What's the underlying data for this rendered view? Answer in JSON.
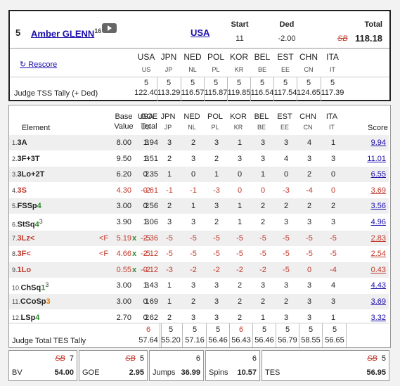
{
  "skater": {
    "rank": "5",
    "name": "Amber GLENN",
    "name_sup": "16",
    "country": "USA",
    "start_label": "Start",
    "start_value": "11",
    "ded_label": "Ded",
    "ded_value": "-2.00",
    "total_label": "Total",
    "total_value": "118.18",
    "total_strike": "SB"
  },
  "rescore_label": "↻ Rescore",
  "judges": [
    {
      "code": "USA",
      "sub": "US",
      "tss": "122.40"
    },
    {
      "code": "JPN",
      "sub": "JP",
      "tss": "113.29"
    },
    {
      "code": "NED",
      "sub": "NL",
      "tss": "116.57"
    },
    {
      "code": "POL",
      "sub": "PL",
      "tss": "115.87"
    },
    {
      "code": "KOR",
      "sub": "KR",
      "tss": "119.85"
    },
    {
      "code": "BEL",
      "sub": "BE",
      "tss": "116.54"
    },
    {
      "code": "EST",
      "sub": "EE",
      "tss": "117.54"
    },
    {
      "code": "CHN",
      "sub": "CN",
      "tss": "124.65"
    },
    {
      "code": "ITA",
      "sub": "IT",
      "tss": "117.39"
    }
  ],
  "tss_rank": [
    "5",
    "5",
    "5",
    "5",
    "5",
    "5",
    "5",
    "5",
    "5"
  ],
  "tss_label": "Judge TSS Tally (+ Ded)",
  "elements_header": {
    "element": "Element",
    "base": "Base",
    "value": "Value",
    "goe": "GOE",
    "total": "Total",
    "score": "Score"
  },
  "elements": [
    {
      "num": "1.",
      "pre": "3A",
      "green": "",
      "orange": "",
      "sup": "",
      "flag": "",
      "base": "8.00",
      "x": "",
      "goe": "1.94",
      "scores": [
        "3",
        "3",
        "2",
        "3",
        "1",
        "3",
        "3",
        "4",
        "1"
      ],
      "score": "9.94",
      "red": false
    },
    {
      "num": "2.",
      "pre": "3F+3T",
      "green": "",
      "orange": "",
      "sup": "",
      "flag": "",
      "base": "9.50",
      "x": "",
      "goe": "1.51",
      "scores": [
        "3",
        "2",
        "3",
        "2",
        "3",
        "3",
        "4",
        "3",
        "3"
      ],
      "score": "11.01",
      "red": false
    },
    {
      "num": "3.",
      "pre": "3Lo+2T",
      "green": "",
      "orange": "",
      "sup": "",
      "flag": "",
      "base": "6.20",
      "x": "",
      "goe": "0.35",
      "scores": [
        "2",
        "1",
        "0",
        "1",
        "0",
        "1",
        "0",
        "2",
        "0"
      ],
      "score": "6.55",
      "red": false
    },
    {
      "num": "4.",
      "pre": "3S",
      "green": "",
      "orange": "",
      "sup": "",
      "flag": "",
      "base": "4.30",
      "x": "",
      "goe": "-0.61",
      "scores": [
        "-2",
        "-1",
        "-1",
        "-3",
        "0",
        "0",
        "-3",
        "-4",
        "0"
      ],
      "score": "3.69",
      "red": true
    },
    {
      "num": "5.",
      "pre": "FSSp",
      "green": "4",
      "orange": "",
      "sup": "",
      "flag": "",
      "base": "3.00",
      "x": "",
      "goe": "0.56",
      "scores": [
        "2",
        "2",
        "1",
        "3",
        "1",
        "2",
        "2",
        "2",
        "2"
      ],
      "score": "3.56",
      "red": false
    },
    {
      "num": "6.",
      "pre": "StSq",
      "green": "4",
      "orange": "",
      "sup": "3",
      "flag": "",
      "base": "3.90",
      "x": "",
      "goe": "1.06",
      "scores": [
        "3",
        "3",
        "3",
        "2",
        "1",
        "2",
        "3",
        "3",
        "3"
      ],
      "score": "4.96",
      "red": false
    },
    {
      "num": "7.",
      "pre": "3Lz<",
      "green": "",
      "orange": "",
      "sup": "",
      "flag": "<F",
      "base": "5.19",
      "x": "x",
      "goe": "-2.36",
      "scores": [
        "-5",
        "-5",
        "-5",
        "-5",
        "-5",
        "-5",
        "-5",
        "-5",
        "-5"
      ],
      "score": "2.83",
      "red": true
    },
    {
      "num": "8.",
      "pre": "3F<",
      "green": "",
      "orange": "",
      "sup": "",
      "flag": "<F",
      "base": "4.66",
      "x": "x",
      "goe": "-2.12",
      "scores": [
        "-5",
        "-5",
        "-5",
        "-5",
        "-5",
        "-5",
        "-5",
        "-5",
        "-5"
      ],
      "score": "2.54",
      "red": true
    },
    {
      "num": "9.",
      "pre": "1Lo",
      "green": "",
      "orange": "",
      "sup": "",
      "flag": "",
      "base": "0.55",
      "x": "x",
      "goe": "-0.12",
      "scores": [
        "-2",
        "-3",
        "-2",
        "-2",
        "-2",
        "-2",
        "-5",
        "0",
        "-4"
      ],
      "score": "0.43",
      "red": true
    },
    {
      "num": "10.",
      "pre": "ChSq",
      "green": "1",
      "orange": "",
      "sup": "3",
      "flag": "",
      "base": "3.00",
      "x": "",
      "goe": "1.43",
      "scores": [
        "3",
        "1",
        "3",
        "3",
        "2",
        "3",
        "3",
        "3",
        "4"
      ],
      "score": "4.43",
      "red": false
    },
    {
      "num": "11.",
      "pre": "CCoSp",
      "green": "",
      "orange": "3",
      "sup": "",
      "flag": "",
      "base": "3.00",
      "x": "",
      "goe": "0.69",
      "scores": [
        "1",
        "1",
        "2",
        "3",
        "2",
        "2",
        "2",
        "3",
        "3"
      ],
      "score": "3.69",
      "red": false
    },
    {
      "num": "12.",
      "pre": "LSp",
      "green": "4",
      "orange": "",
      "sup": "",
      "flag": "",
      "base": "2.70",
      "x": "",
      "goe": "0.62",
      "scores": [
        "2",
        "2",
        "3",
        "3",
        "2",
        "1",
        "3",
        "3",
        "1"
      ],
      "score": "3.32",
      "red": false
    }
  ],
  "tes_label": "Judge Total TES Tally",
  "tes_rank": [
    "6",
    "5",
    "5",
    "5",
    "6",
    "5",
    "5",
    "5",
    "5"
  ],
  "tes_values": [
    "57.64",
    "55.20",
    "57.16",
    "56.46",
    "56.43",
    "56.46",
    "56.79",
    "58.55",
    "56.65"
  ],
  "summary": [
    {
      "label": "BV",
      "strike": "SB",
      "top": "7",
      "value": "54.00"
    },
    {
      "label": "GOE",
      "strike": "SB",
      "top": "5",
      "value": "2.95"
    },
    {
      "label": "Jumps",
      "strike": "",
      "top": "6",
      "value": "36.99"
    },
    {
      "label": "Spins",
      "strike": "",
      "top": "6",
      "value": "10.57"
    },
    {
      "label": "TES",
      "strike": "SB",
      "top": "5",
      "value": "56.95"
    }
  ],
  "colors": {
    "red": "#c0392b",
    "green": "#2e8b2e",
    "orange": "#e07b00",
    "link": "#1a0dab"
  }
}
